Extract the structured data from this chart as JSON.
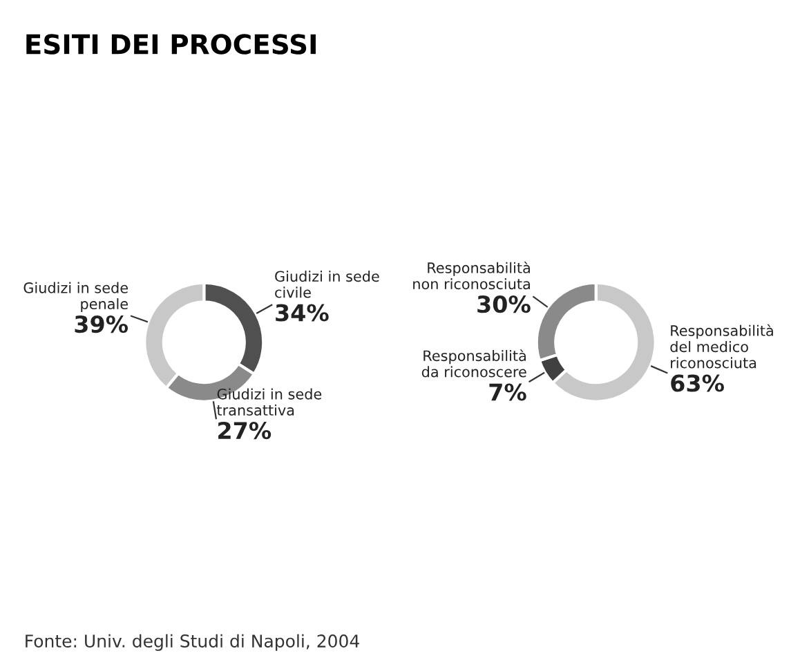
{
  "chart_data": [
    {
      "type": "donut",
      "title": "ESITI DEI PROCESSI",
      "categories": [
        "Giudizi in sede civile",
        "Giudizi in sede transattiva",
        "Giudizi in sede penale"
      ],
      "values": [
        34,
        27,
        39
      ],
      "value_labels": [
        "34%",
        "27%",
        "39%"
      ],
      "colors": [
        "#505050",
        "#8a8a8a",
        "#c8c8c8"
      ]
    },
    {
      "type": "donut",
      "categories": [
        "Responsabilità del medico riconosciuta",
        "Responsabilità da riconoscere",
        "Responsabilità non riconosciuta"
      ],
      "values": [
        63,
        7,
        30
      ],
      "value_labels": [
        "63%",
        "7%",
        "30%"
      ],
      "colors": [
        "#c8c8c8",
        "#404040",
        "#8a8a8a"
      ],
      "annotations": [
        "Fonte: Univ. degli Studi di Napoli, 2004"
      ]
    }
  ]
}
